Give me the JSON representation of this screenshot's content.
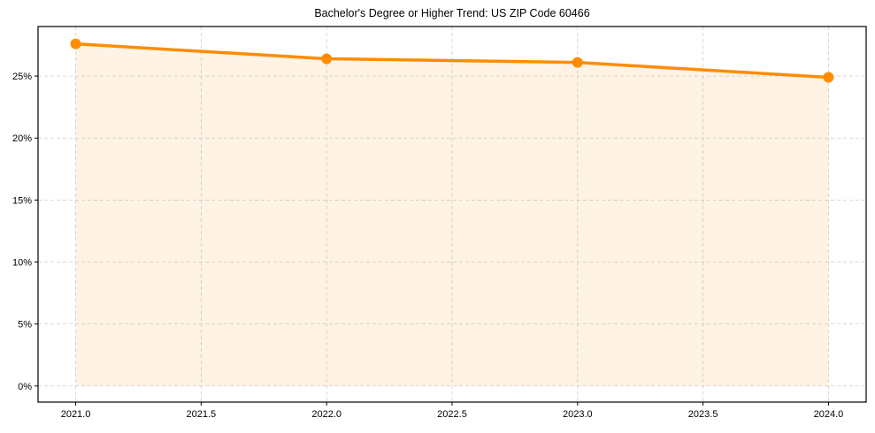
{
  "chart_data": {
    "type": "line",
    "title": "Bachelor's Degree or Higher Trend: US ZIP Code 60466",
    "xlabel": "",
    "ylabel": "",
    "x": [
      2021,
      2022,
      2023,
      2024
    ],
    "series": [
      {
        "name": "Bachelor's Degree or Higher",
        "values": [
          27.6,
          26.4,
          26.1,
          24.9
        ],
        "color": "#ff8c00",
        "fill_color": "#ff8c00",
        "fill_alpha": 0.1,
        "marker": "circle"
      }
    ],
    "xlim": [
      2020.85,
      2024.15
    ],
    "ylim": [
      -1.3,
      29.0
    ],
    "x_ticks": [
      2021.0,
      2021.5,
      2022.0,
      2022.5,
      2023.0,
      2023.5,
      2024.0
    ],
    "x_tick_labels": [
      "2021.0",
      "2021.5",
      "2022.0",
      "2022.5",
      "2023.0",
      "2023.5",
      "2024.0"
    ],
    "y_ticks": [
      0,
      5,
      10,
      15,
      20,
      25
    ],
    "y_tick_labels": [
      "0%",
      "5%",
      "10%",
      "15%",
      "20%",
      "25%"
    ],
    "grid": true,
    "grid_style": "dashed",
    "legend": null
  }
}
